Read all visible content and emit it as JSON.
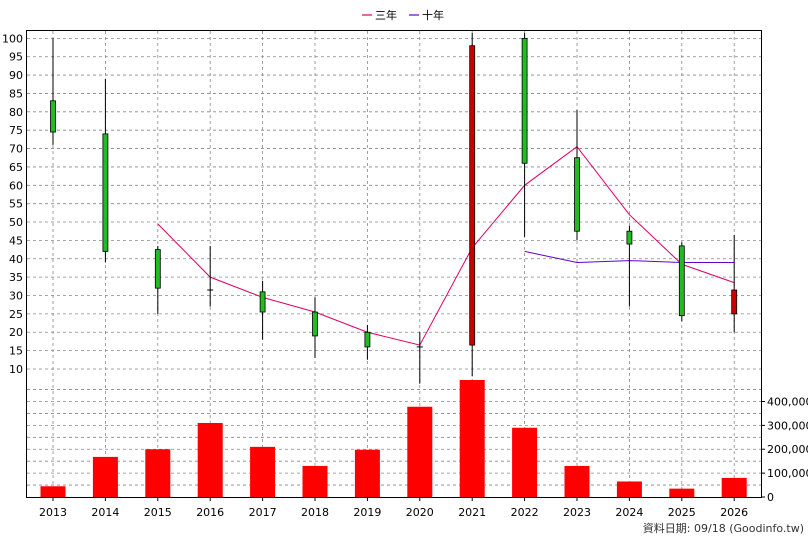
{
  "legend": [
    {
      "label": "三年",
      "color": "#dd0066"
    },
    {
      "label": "十年",
      "color": "#6600cc"
    }
  ],
  "footer": "資料日期: 09/18  (Goodinfo.tw)",
  "colors": {
    "up": "#22bb22",
    "down": "#cc0000",
    "volume": "#ff0000",
    "grid": "#888888"
  },
  "chart_data": [
    {
      "type": "candlestick",
      "categories": [
        "2013",
        "2014",
        "2015",
        "2016",
        "2017",
        "2018",
        "2019",
        "2020",
        "2021",
        "2022",
        "2023",
        "2024",
        "2025",
        "2026"
      ],
      "ylim": [
        7,
        102
      ],
      "yticks": [
        10,
        15,
        20,
        25,
        30,
        35,
        40,
        45,
        50,
        55,
        60,
        65,
        70,
        75,
        80,
        85,
        90,
        95,
        100
      ],
      "grid": true,
      "candles": [
        {
          "open": 74.5,
          "close": 83,
          "high": 100,
          "low": 71
        },
        {
          "open": 42,
          "close": 74,
          "high": 89,
          "low": 39
        },
        {
          "open": 32,
          "close": 42.5,
          "high": 43.5,
          "low": 25
        },
        {
          "open": 31.5,
          "close": 31.5,
          "high": 43.5,
          "low": 27
        },
        {
          "open": 25.5,
          "close": 31,
          "high": 34,
          "low": 18
        },
        {
          "open": 19,
          "close": 25.5,
          "high": 29.5,
          "low": 13
        },
        {
          "open": 16,
          "close": 20,
          "high": 22,
          "low": 12.5
        },
        {
          "open": 16,
          "close": 16,
          "high": 20,
          "low": 6
        },
        {
          "open": 98,
          "close": 16.5,
          "high": 101.5,
          "low": 8
        },
        {
          "open": 66,
          "close": 100,
          "high": 101.5,
          "low": 46
        },
        {
          "open": 47.5,
          "close": 67.5,
          "high": 80.5,
          "low": 45
        },
        {
          "open": 44,
          "close": 47.5,
          "high": 49,
          "low": 27
        },
        {
          "open": 24.5,
          "close": 43.5,
          "high": 44.5,
          "low": 23
        },
        {
          "open": 31.5,
          "close": 25,
          "high": 46.5,
          "low": 20
        }
      ],
      "series": [
        {
          "name": "三年",
          "values": [
            null,
            null,
            49.5,
            35,
            29.5,
            25.5,
            20,
            16.5,
            43,
            60,
            70.5,
            52,
            38.5,
            33.5
          ]
        },
        {
          "name": "十年",
          "values": [
            null,
            null,
            null,
            null,
            null,
            null,
            null,
            null,
            null,
            42,
            39,
            39.5,
            39,
            39
          ]
        }
      ]
    },
    {
      "type": "bar",
      "categories": [
        "2013",
        "2014",
        "2015",
        "2016",
        "2017",
        "2018",
        "2019",
        "2020",
        "2021",
        "2022",
        "2023",
        "2024",
        "2025",
        "2026"
      ],
      "values": [
        45000,
        168000,
        200000,
        310000,
        210000,
        130000,
        198000,
        378000,
        490000,
        290000,
        130000,
        65000,
        35000,
        80000
      ],
      "ylim": [
        0,
        490000
      ],
      "yticks": [
        0,
        100000,
        200000,
        300000,
        400000
      ],
      "ytick_labels": [
        "0",
        "100,000",
        "200,000",
        "300,000",
        "400,000"
      ]
    }
  ]
}
